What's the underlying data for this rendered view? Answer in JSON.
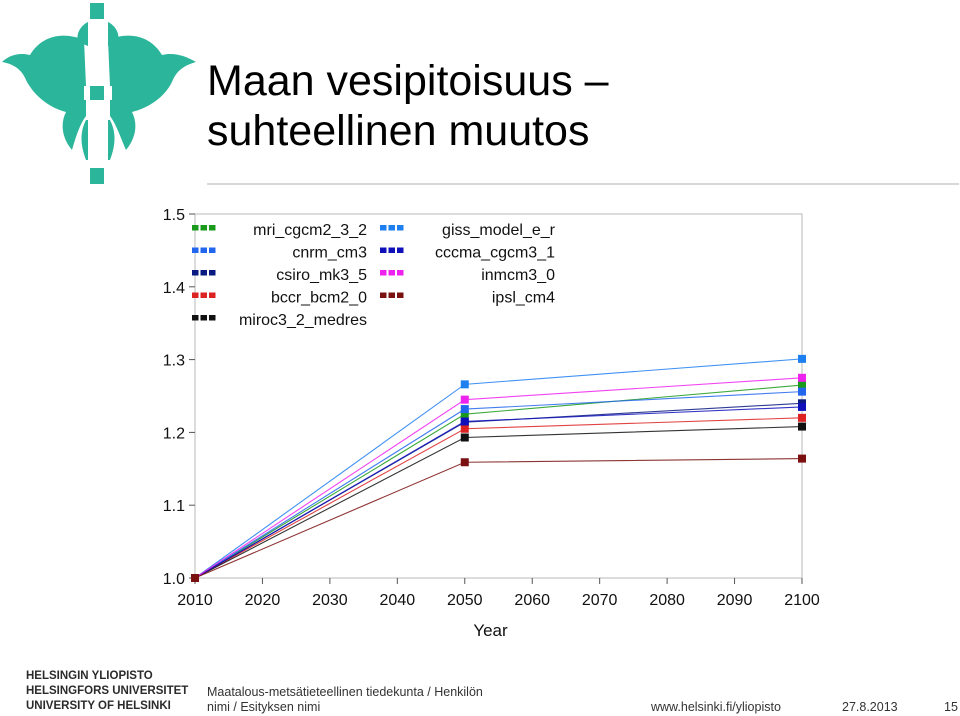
{
  "slide": {
    "title_line1": "Maan vesipitoisuus –",
    "title_line2": "suhteellinen muutos"
  },
  "footer": {
    "university_fi": "HELSINGIN YLIOPISTO",
    "university_sv": "HELSINGFORS UNIVERSITET",
    "university_en": "UNIVERSITY OF HELSINKI",
    "faculty_line1": "Maatalous-metsätieteellinen tiedekunta / Henkilön",
    "faculty_line2": "nimi / Esityksen nimi",
    "url": "www.helsinki.fi/yliopisto",
    "date": "27.8.2013",
    "page": "15"
  },
  "colors": {
    "logo": "#2bb59a",
    "axis": "#555555"
  },
  "logo_icon": "helsinki-university-flame-logo",
  "chart_data": {
    "type": "line",
    "title": "",
    "xlabel": "Year",
    "ylabel": "",
    "x": [
      2010,
      2050,
      2100
    ],
    "xticks": [
      "2010",
      "2020",
      "2030",
      "2040",
      "2050",
      "2060",
      "2070",
      "2080",
      "2090",
      "2100"
    ],
    "yticks": [
      "1.0",
      "1.1",
      "1.2",
      "1.3",
      "1.4",
      "1.5"
    ],
    "xlim": [
      2010,
      2100
    ],
    "ylim": [
      1.0,
      1.5
    ],
    "legend_position": "top-left, two columns",
    "series": [
      {
        "name": "mri_cgcm2_3_2",
        "color": "#1a9a1a",
        "values": [
          1.0,
          1.225,
          1.265
        ]
      },
      {
        "name": "cnrm_cm3",
        "color": "#2266ee",
        "values": [
          1.0,
          1.232,
          1.256
        ]
      },
      {
        "name": "csiro_mk3_5",
        "color": "#0a1a80",
        "values": [
          1.0,
          1.214,
          1.24
        ]
      },
      {
        "name": "bccr_bcm2_0",
        "color": "#dd2222",
        "values": [
          1.0,
          1.205,
          1.22
        ]
      },
      {
        "name": "miroc3_2_medres",
        "color": "#111111",
        "values": [
          1.0,
          1.193,
          1.208
        ]
      },
      {
        "name": "giss_model_e_r",
        "color": "#1e7ff0",
        "values": [
          1.0,
          1.266,
          1.301
        ]
      },
      {
        "name": "cccma_cgcm3_1",
        "color": "#1010bb",
        "values": [
          1.0,
          1.215,
          1.235
        ]
      },
      {
        "name": "inmcm3_0",
        "color": "#ee22ee",
        "values": [
          1.0,
          1.245,
          1.275
        ]
      },
      {
        "name": "ipsl_cm4",
        "color": "#7a1010",
        "values": [
          1.0,
          1.159,
          1.164
        ]
      }
    ]
  }
}
